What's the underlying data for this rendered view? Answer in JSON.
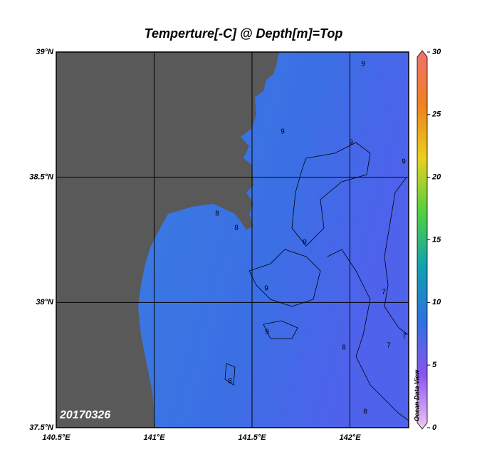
{
  "title": "Temperture[-C] @ Depth[m]=Top",
  "map": {
    "xlim": [
      140.5,
      142.3
    ],
    "ylim": [
      37.5,
      39
    ],
    "xticks": [
      {
        "value": 140.5,
        "label": "140.5°E"
      },
      {
        "value": 141,
        "label": "141°E"
      },
      {
        "value": 141.5,
        "label": "141.5°E"
      },
      {
        "value": 142,
        "label": "142°E"
      }
    ],
    "yticks": [
      {
        "value": 37.5,
        "label": "37.5°N"
      },
      {
        "value": 38,
        "label": "38°N"
      },
      {
        "value": 38.5,
        "label": "38.5°N"
      },
      {
        "value": 39,
        "label": "39°N"
      }
    ],
    "grid": true,
    "land_color": "#595959",
    "ocean_color": "#3b6fe4",
    "date_label": "20170326",
    "contour_labels": [
      9,
      9,
      9,
      9,
      9,
      9,
      9,
      8,
      8,
      8,
      8,
      8,
      7,
      7,
      7
    ]
  },
  "colorbar": {
    "lim": [
      0,
      30
    ],
    "ticks": [
      0,
      5,
      10,
      15,
      20,
      25,
      30
    ],
    "colors": [
      "#f4c8f4",
      "#8a55f0",
      "#3070e0",
      "#10a0b0",
      "#50d040",
      "#e8d020",
      "#f08020",
      "#f07070"
    ],
    "label": "Ocean Data View"
  }
}
